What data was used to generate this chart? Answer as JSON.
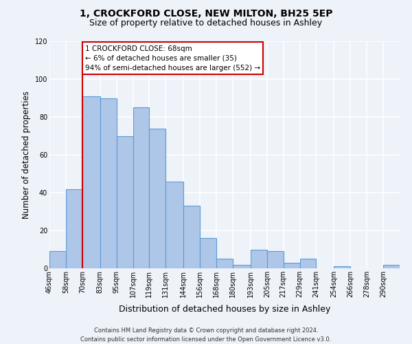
{
  "title": "1, CROCKFORD CLOSE, NEW MILTON, BH25 5EP",
  "subtitle": "Size of property relative to detached houses in Ashley",
  "xlabel": "Distribution of detached houses by size in Ashley",
  "ylabel": "Number of detached properties",
  "footer_line1": "Contains HM Land Registry data © Crown copyright and database right 2024.",
  "footer_line2": "Contains public sector information licensed under the Open Government Licence v3.0.",
  "bin_labels": [
    "46sqm",
    "58sqm",
    "70sqm",
    "83sqm",
    "95sqm",
    "107sqm",
    "119sqm",
    "131sqm",
    "144sqm",
    "156sqm",
    "168sqm",
    "180sqm",
    "193sqm",
    "205sqm",
    "217sqm",
    "229sqm",
    "241sqm",
    "254sqm",
    "266sqm",
    "278sqm",
    "290sqm"
  ],
  "bar_heights": [
    9,
    42,
    91,
    90,
    70,
    85,
    74,
    46,
    33,
    16,
    5,
    2,
    10,
    9,
    3,
    5,
    0,
    1,
    0,
    0,
    2
  ],
  "bar_color": "#aec6e8",
  "bar_edgecolor": "#5b9bd5",
  "property_line_x_label": "70sqm",
  "property_line_label": "1 CROCKFORD CLOSE: 68sqm",
  "annotation_line1": "← 6% of detached houses are smaller (35)",
  "annotation_line2": "94% of semi-detached houses are larger (552) →",
  "annotation_box_edgecolor": "#cc0000",
  "annotation_box_facecolor": "#ffffff",
  "vline_color": "#cc0000",
  "ylim": [
    0,
    120
  ],
  "yticks": [
    0,
    20,
    40,
    60,
    80,
    100,
    120
  ],
  "background_color": "#eef2f9",
  "grid_color": "#ffffff",
  "title_fontsize": 10,
  "subtitle_fontsize": 9,
  "ylabel_fontsize": 8.5,
  "xlabel_fontsize": 9,
  "tick_fontsize": 7,
  "annotation_fontsize": 7.5,
  "footer_fontsize": 6
}
